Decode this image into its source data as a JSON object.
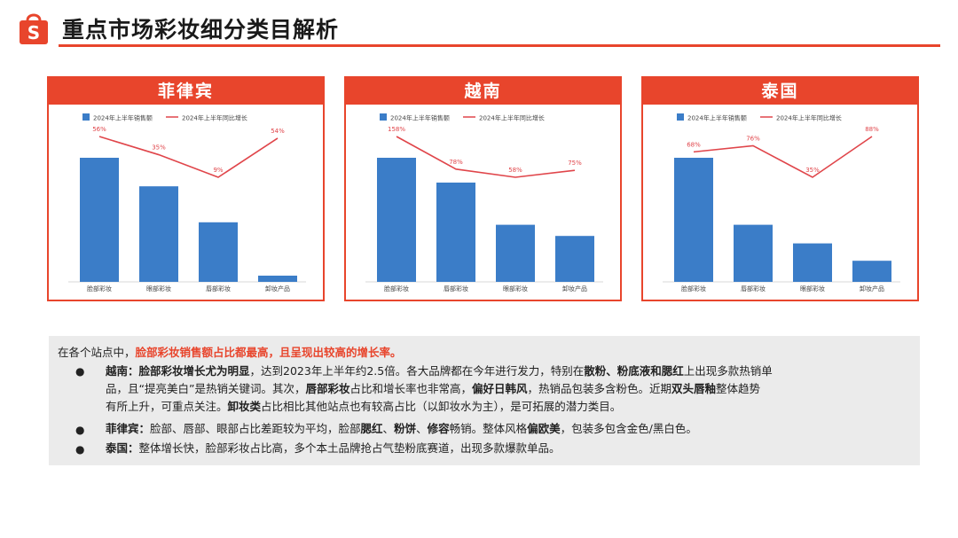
{
  "page": {
    "title": "重点市场彩妆细分类目解析",
    "logo_icon": "shopee-bag-icon",
    "accent": "#e8452c",
    "bar_color": "#3b7dc8",
    "line_color": "#e0454a"
  },
  "legend": {
    "bar_label_a": "2024年上半年销售额",
    "bar_label_b": "2024年上半年销售额",
    "line_label": "2024年上半年同比增长"
  },
  "chart_data": [
    {
      "type": "bar",
      "title": "菲律宾",
      "categories": [
        "脸部彩妆",
        "眼部彩妆",
        "唇部彩妆",
        "卸妆产品"
      ],
      "series": [
        {
          "name": "2024年上半年销售额",
          "values": [
            100,
            77,
            48,
            5
          ]
        },
        {
          "name": "2024年上半年同比增长",
          "values": [
            "56%",
            "35%",
            "9%",
            "54%"
          ],
          "numeric": [
            56,
            35,
            9,
            54
          ]
        }
      ],
      "legend_position": "top",
      "grid": false
    },
    {
      "type": "bar",
      "title": "越南",
      "categories": [
        "脸部彩妆",
        "唇部彩妆",
        "眼部彩妆",
        "卸妆产品"
      ],
      "series": [
        {
          "name": "2024年上半年销售额",
          "values": [
            100,
            80,
            46,
            37
          ]
        },
        {
          "name": "2024年上半年同比增长",
          "values": [
            "158%",
            "78%",
            "58%",
            "75%"
          ],
          "numeric": [
            158,
            78,
            58,
            75
          ]
        }
      ],
      "legend_position": "top",
      "grid": false
    },
    {
      "type": "bar",
      "title": "泰国",
      "categories": [
        "脸部彩妆",
        "唇部彩妆",
        "眼部彩妆",
        "卸妆产品"
      ],
      "series": [
        {
          "name": "2024年上半年销售额",
          "values": [
            100,
            46,
            31,
            17
          ]
        },
        {
          "name": "2024年上半年同比增长",
          "values": [
            "68%",
            "76%",
            "35%",
            "88%"
          ],
          "numeric": [
            68,
            76,
            35,
            88
          ]
        }
      ],
      "legend_position": "top",
      "grid": false
    }
  ],
  "summary": {
    "intro_plain": "在各个站点中，",
    "intro_hl": "脸部彩妆销售额占比都最高，且呈现出较高的增长率。",
    "vn": {
      "label": "越南：",
      "b1": "脸部彩妆增长尤为明显",
      "t1": "，达到2023年上半年约2.5倍。各大品牌都在今年进行发力，特别在",
      "b2": "散粉、粉底液和腮红",
      "t2": "上出现多款热销单",
      "t3": "品，且“提亮美白”是热销关键词。其次，",
      "b3": "唇部彩妆",
      "t4": "占比和增长率也非常高，",
      "b4": "偏好日韩风",
      "t5": "，热销品包装多含粉色。近期",
      "b5": "双头唇釉",
      "t6": "整体趋势",
      "t7": "有所上升，可重点关注。",
      "b6": "卸妆类",
      "t8": "占比相比其他站点也有较高占比（以卸妆水为主），是可拓展的潜力类目。"
    },
    "ph": {
      "label": "菲律宾：",
      "t1": "脸部、唇部、眼部占比差距较为平均，脸部",
      "b1": "腮红",
      "t2": "、",
      "b2": "粉饼",
      "t3": "、",
      "b3": "修容",
      "t4": "畅销。整体风格",
      "b4": "偏欧美",
      "t5": "，包装多包含金色/黑白色。"
    },
    "th": {
      "label": "泰国：",
      "t1": "整体增长快，脸部彩妆占比高，多个本土品牌抢占气垫粉底赛道，出现多款爆款单品。"
    },
    "bullet": "●"
  }
}
